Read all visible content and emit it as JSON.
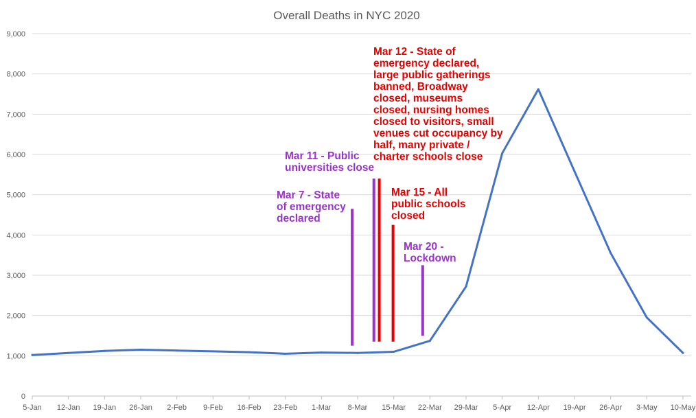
{
  "chart_data": {
    "type": "line",
    "title": "Overall Deaths in NYC 2020",
    "xlabel": "",
    "ylabel": "",
    "ylim": [
      0,
      9000
    ],
    "yticks": [
      0,
      1000,
      2000,
      3000,
      4000,
      5000,
      6000,
      7000,
      8000,
      9000
    ],
    "ytick_labels": [
      "0",
      "1,000",
      "2,000",
      "3,000",
      "4,000",
      "5,000",
      "6,000",
      "7,000",
      "8,000",
      "9,000"
    ],
    "grid": true,
    "categories": [
      "5-Jan",
      "12-Jan",
      "19-Jan",
      "26-Jan",
      "2-Feb",
      "9-Feb",
      "16-Feb",
      "23-Feb",
      "1-Mar",
      "8-Mar",
      "15-Mar",
      "22-Mar",
      "29-Mar",
      "5-Apr",
      "12-Apr",
      "19-Apr",
      "26-Apr",
      "3-May",
      "10-May"
    ],
    "series": [
      {
        "name": "Overall Deaths",
        "color": "#4472c4",
        "values": [
          1020,
          1070,
          1120,
          1150,
          1130,
          1110,
          1090,
          1050,
          1080,
          1070,
          1100,
          1370,
          2720,
          6030,
          7620,
          5580,
          3550,
          1950,
          1070
        ]
      }
    ],
    "annotations": [
      {
        "lines": [
          "Mar 7 - State",
          "of emergency",
          "declared"
        ],
        "color": "#9933cc",
        "x_index": 8.85,
        "y_top": 4650,
        "y_bottom": 1250
      },
      {
        "lines": [
          "Mar 11 - Public",
          "universities close"
        ],
        "color": "#9933cc",
        "x_index": 9.45,
        "y_top": 5400,
        "y_bottom": 1350
      },
      {
        "lines": [
          "Mar 12 - State of",
          "emergency declared,",
          "large public gatherings",
          "banned, Broadway",
          "closed, museums",
          "closed, nursing homes",
          "closed to visitors, small",
          "venues cut occupancy by",
          "half, many private /",
          "charter schools close"
        ],
        "color": "#e60000",
        "x_index": 9.6,
        "y_top": 5400,
        "y_bottom": 1350
      },
      {
        "lines": [
          "Mar 15 - All",
          "public schools",
          "closed"
        ],
        "color": "#e60000",
        "x_index": 9.98,
        "y_top": 4250,
        "y_bottom": 1350
      },
      {
        "lines": [
          "Mar 20 -",
          "Lockdown"
        ],
        "color": "#9933cc",
        "x_index": 10.8,
        "y_top": 3250,
        "y_bottom": 1500
      }
    ]
  }
}
